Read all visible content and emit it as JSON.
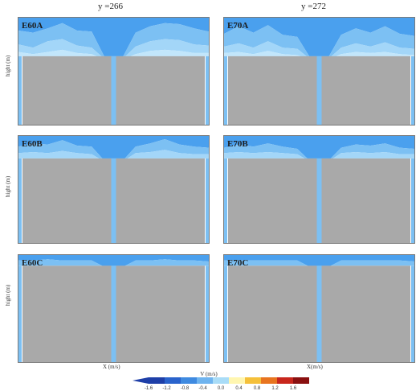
{
  "columns": [
    {
      "title": "y =266"
    },
    {
      "title": "y =272"
    }
  ],
  "ylabel": "hight (m)",
  "x_axis": {
    "left": "X (m/s)",
    "right": "X(m/s)"
  },
  "chart_data": [
    {
      "type": "heatmap",
      "label": "E60A",
      "column": "y =266",
      "row": 0,
      "obstacle_top": 0.64,
      "contours": [
        [
          0.88,
          0.86,
          0.9,
          0.95,
          0.88,
          0.87,
          0.6,
          0.6,
          0.86,
          0.92,
          0.95,
          0.94,
          0.9,
          0.87
        ],
        [
          0.75,
          0.72,
          0.78,
          0.8,
          0.74,
          0.72,
          0.6,
          0.6,
          0.73,
          0.78,
          0.8,
          0.79,
          0.75,
          0.74
        ],
        [
          0.68,
          0.66,
          0.68,
          0.7,
          0.67,
          0.66,
          0.6,
          0.6,
          0.66,
          0.69,
          0.7,
          0.69,
          0.67,
          0.67
        ]
      ]
    },
    {
      "type": "heatmap",
      "label": "E70A",
      "column": "y =272",
      "row": 0,
      "obstacle_top": 0.64,
      "contours": [
        [
          0.85,
          0.92,
          0.86,
          0.93,
          0.84,
          0.82,
          0.6,
          0.6,
          0.84,
          0.9,
          0.86,
          0.92,
          0.85,
          0.83
        ],
        [
          0.73,
          0.76,
          0.72,
          0.78,
          0.72,
          0.71,
          0.6,
          0.6,
          0.72,
          0.76,
          0.73,
          0.77,
          0.72,
          0.71
        ],
        [
          0.67,
          0.68,
          0.66,
          0.69,
          0.66,
          0.65,
          0.6,
          0.6,
          0.66,
          0.68,
          0.67,
          0.68,
          0.66,
          0.65
        ]
      ]
    },
    {
      "type": "heatmap",
      "label": "E60B",
      "column": "y =266",
      "row": 1,
      "obstacle_top": 0.79,
      "contours": [
        [
          0.9,
          0.93,
          0.92,
          0.96,
          0.91,
          0.9,
          0.75,
          0.75,
          0.9,
          0.93,
          0.97,
          0.92,
          0.9,
          0.89
        ],
        [
          0.84,
          0.85,
          0.84,
          0.86,
          0.84,
          0.83,
          0.75,
          0.75,
          0.84,
          0.85,
          0.87,
          0.84,
          0.83,
          0.83
        ]
      ]
    },
    {
      "type": "heatmap",
      "label": "E70B",
      "column": "y =272",
      "row": 1,
      "obstacle_top": 0.79,
      "contours": [
        [
          0.89,
          0.92,
          0.9,
          0.93,
          0.9,
          0.88,
          0.75,
          0.75,
          0.89,
          0.92,
          0.91,
          0.93,
          0.89,
          0.88
        ],
        [
          0.84,
          0.85,
          0.84,
          0.85,
          0.84,
          0.83,
          0.75,
          0.75,
          0.84,
          0.85,
          0.84,
          0.85,
          0.83,
          0.83
        ]
      ]
    },
    {
      "type": "heatmap",
      "label": "E60C",
      "column": "y =266",
      "row": 2,
      "obstacle_top": 0.9,
      "contours": [
        [
          0.95,
          0.95,
          0.96,
          0.95,
          0.95,
          0.95,
          0.88,
          0.88,
          0.95,
          0.95,
          0.96,
          0.95,
          0.95,
          0.94
        ]
      ]
    },
    {
      "type": "heatmap",
      "label": "E70C",
      "column": "y =272",
      "row": 2,
      "obstacle_top": 0.9,
      "contours": [
        [
          0.95,
          0.95,
          0.95,
          0.95,
          0.95,
          0.95,
          0.88,
          0.88,
          0.95,
          0.95,
          0.95,
          0.95,
          0.95,
          0.94
        ]
      ]
    }
  ],
  "colorbar": {
    "label": "V (m/s)",
    "ticks": [
      "-1.6",
      "-1.2",
      "-0.8",
      "-0.4",
      "0.0",
      "0.4",
      "0.8",
      "1.2",
      "1.6"
    ],
    "colors": [
      "#1e3fa8",
      "#2a63cc",
      "#3f8ae0",
      "#6fb4ef",
      "#a9dcf7",
      "#fff6b0",
      "#f5c03a",
      "#e8741f",
      "#c8261c",
      "#8a1010"
    ]
  },
  "colors": {
    "level1": "#4aa0ee",
    "level2": "#7cc0f3",
    "level3": "#a3d6f8",
    "level4": "#c2e6fb",
    "obstacle": "#a9a9a9"
  }
}
